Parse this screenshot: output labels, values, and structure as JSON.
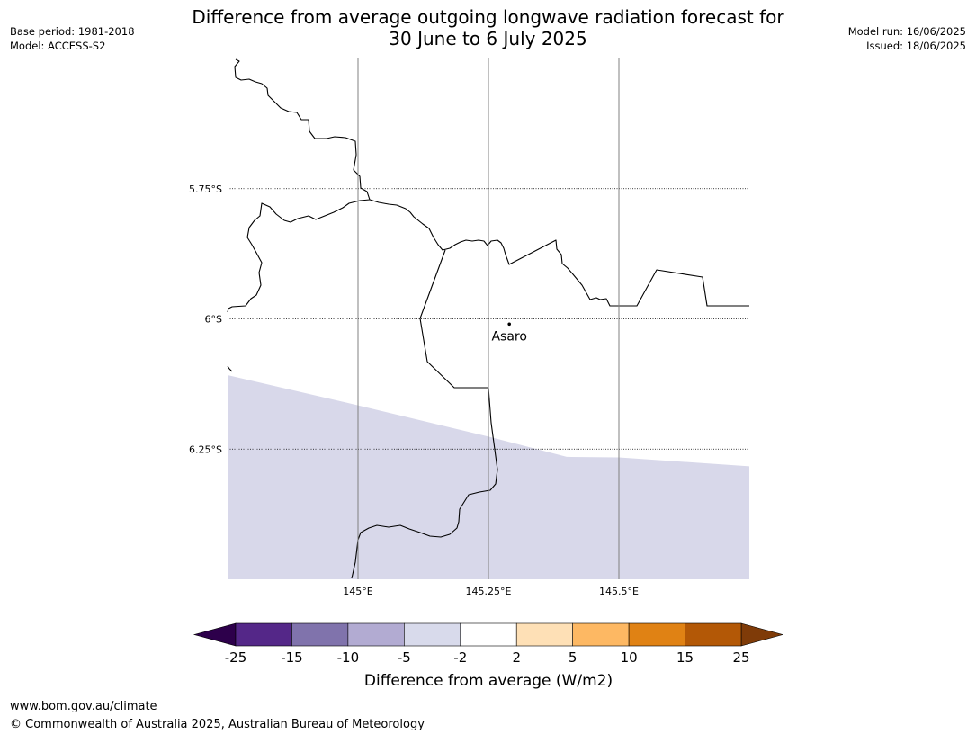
{
  "title": {
    "line1": "Difference from average outgoing longwave radiation forecast for",
    "line2": "30 June to 6 July 2025"
  },
  "meta_left": {
    "base_period": "Base period: 1981-2018",
    "model": "Model: ACCESS-S2"
  },
  "meta_right": {
    "model_run": "Model run: 16/06/2025",
    "issued": "Issued: 18/06/2025"
  },
  "map": {
    "lon_range": [
      144.75,
      145.75
    ],
    "lat_range": [
      -5.5,
      -6.5
    ],
    "lat_gridlines": [
      {
        "value": -5.75,
        "label": "5.75°S"
      },
      {
        "value": -6.0,
        "label": "6°S"
      },
      {
        "value": -6.25,
        "label": "6.25°S"
      }
    ],
    "lon_gridlines": [
      {
        "value": 145.0,
        "label": "145°E"
      },
      {
        "value": 145.25,
        "label": "145.25°E"
      },
      {
        "value": 145.5,
        "label": "145.5°E"
      }
    ],
    "places": [
      {
        "name": "Asaro",
        "lon": 145.29,
        "lat": -6.01
      }
    ],
    "shaded_region": {
      "category": "-5 to -2",
      "color": "#d8d8ea",
      "boundary": [
        [
          144.75,
          -6.108
        ],
        [
          145.0,
          -6.166
        ],
        [
          145.25,
          -6.226
        ],
        [
          145.4,
          -6.265
        ],
        [
          145.5,
          -6.266
        ],
        [
          145.75,
          -6.283
        ],
        [
          145.75,
          -6.5
        ],
        [
          144.75,
          -6.5
        ]
      ]
    },
    "land_color": "#ffffff",
    "border_color": "#000000",
    "gridline_color": "#000000"
  },
  "colorbar": {
    "label": "Difference from average (W/m2)",
    "ticks": [
      "-25",
      "-15",
      "-10",
      "-5",
      "-2",
      "2",
      "5",
      "10",
      "15",
      "25"
    ],
    "colors": [
      "#542788",
      "#8073ac",
      "#b2abd2",
      "#d8daeb",
      "#ffffff",
      "#fee0b6",
      "#fdb863",
      "#e08214",
      "#b35806"
    ],
    "under_color": "#2d004b",
    "over_color": "#7f3b08"
  },
  "footer": {
    "url": "www.bom.gov.au/climate",
    "copyright": "© Commonwealth of Australia 2025, Australian Bureau of Meteorology"
  }
}
